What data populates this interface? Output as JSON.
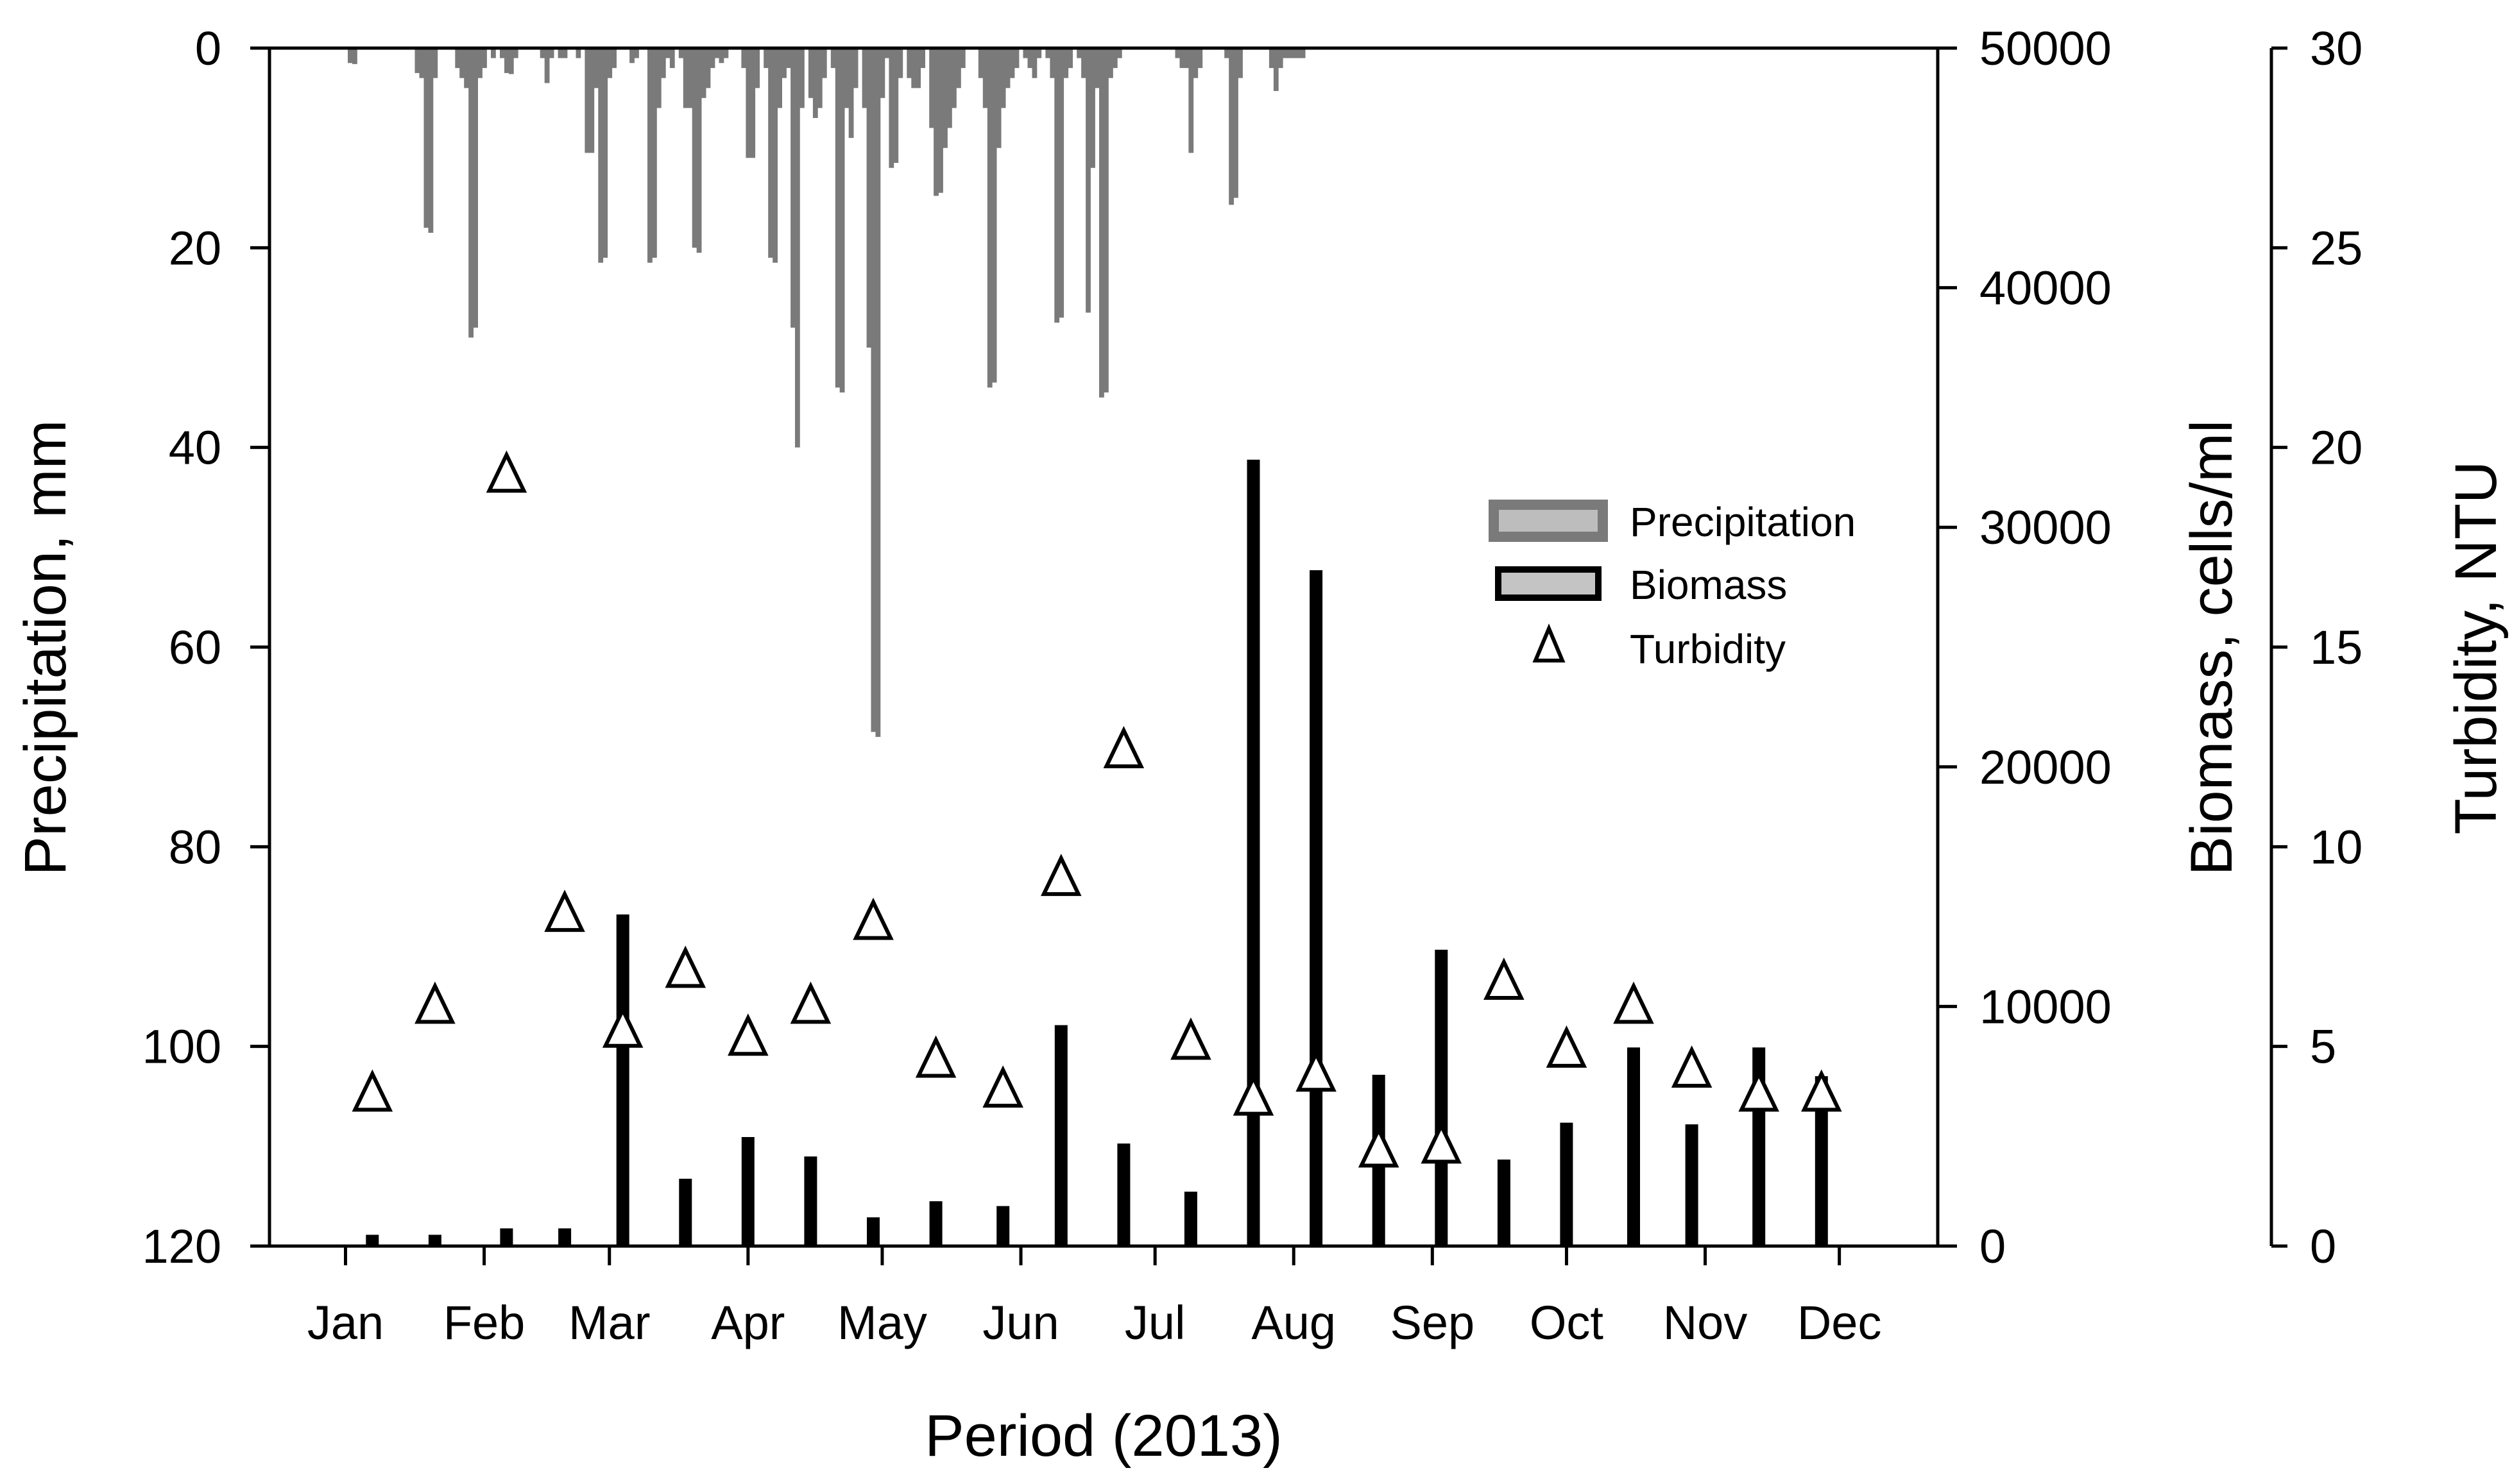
{
  "chart_data": {
    "type": "bar",
    "title": "",
    "xlabel": "Period (2013)",
    "x_unit": "day of year",
    "xlim": [
      -2,
      371
    ],
    "x_ticks": [
      {
        "day": 15,
        "label": "Jan"
      },
      {
        "day": 46,
        "label": "Feb"
      },
      {
        "day": 74,
        "label": "Mar"
      },
      {
        "day": 105,
        "label": "Apr"
      },
      {
        "day": 135,
        "label": "May"
      },
      {
        "day": 166,
        "label": "Jun"
      },
      {
        "day": 196,
        "label": "Jul"
      },
      {
        "day": 227,
        "label": "Aug"
      },
      {
        "day": 258,
        "label": "Sep"
      },
      {
        "day": 288,
        "label": "Oct"
      },
      {
        "day": 319,
        "label": "Nov"
      },
      {
        "day": 349,
        "label": "Dec"
      }
    ],
    "axes": {
      "precipitation": {
        "label": "Precipitation, mm",
        "ylim": [
          0,
          120
        ],
        "inverted": true,
        "ticks": [
          "0",
          "20",
          "40",
          "60",
          "80",
          "100",
          "120"
        ],
        "tick_values": [
          0,
          20,
          40,
          60,
          80,
          100,
          120
        ]
      },
      "biomass": {
        "label": "Biomass, cells/ml",
        "ylim": [
          0,
          50000
        ],
        "ticks": [
          "0",
          "10000",
          "20000",
          "30000",
          "40000",
          "50000"
        ],
        "tick_values": [
          0,
          10000,
          20000,
          30000,
          40000,
          50000
        ]
      },
      "turbidity": {
        "label": "Turbidity, NTU",
        "ylim": [
          0,
          30
        ],
        "ticks": [
          "0",
          "5",
          "10",
          "15",
          "20",
          "25",
          "30"
        ],
        "tick_values": [
          0,
          5,
          10,
          15,
          20,
          25,
          30
        ]
      }
    },
    "legend": {
      "placement": "center-right",
      "entries": [
        "Precipitation",
        "Biomass",
        "Turbidity"
      ]
    },
    "colors": {
      "precipitation": "#7a7a7a",
      "biomass": "#000000",
      "turbidity_fill": "#ffffff",
      "turbidity_stroke": "#000000"
    },
    "series": [
      {
        "name": "Precipitation",
        "type": "bar",
        "axis": "precipitation",
        "points": [
          [
            16,
            1.5
          ],
          [
            17,
            1.6
          ],
          [
            31,
            2.5
          ],
          [
            32,
            3
          ],
          [
            33,
            18
          ],
          [
            34,
            18.5
          ],
          [
            35,
            3
          ],
          [
            40,
            2
          ],
          [
            41,
            3
          ],
          [
            42,
            4
          ],
          [
            43,
            29
          ],
          [
            44,
            28
          ],
          [
            45,
            3
          ],
          [
            46,
            2
          ],
          [
            48,
            1
          ],
          [
            50,
            1
          ],
          [
            51,
            2.5
          ],
          [
            52,
            2.6
          ],
          [
            53,
            1
          ],
          [
            59,
            1
          ],
          [
            60,
            3.5
          ],
          [
            61,
            1
          ],
          [
            63,
            1
          ],
          [
            64,
            1
          ],
          [
            67,
            1
          ],
          [
            69,
            10.5
          ],
          [
            70,
            10.5
          ],
          [
            71,
            4
          ],
          [
            72,
            21.5
          ],
          [
            73,
            21
          ],
          [
            74,
            3
          ],
          [
            75,
            2
          ],
          [
            79,
            1.5
          ],
          [
            80,
            1
          ],
          [
            83,
            21.5
          ],
          [
            84,
            21
          ],
          [
            85,
            6
          ],
          [
            86,
            3
          ],
          [
            87,
            1
          ],
          [
            88,
            2
          ],
          [
            90,
            1
          ],
          [
            91,
            6
          ],
          [
            92,
            6
          ],
          [
            93,
            20
          ],
          [
            94,
            20.5
          ],
          [
            95,
            5
          ],
          [
            96,
            4
          ],
          [
            97,
            2
          ],
          [
            98,
            1
          ],
          [
            99,
            1.5
          ],
          [
            100,
            1
          ],
          [
            104,
            2
          ],
          [
            105,
            11
          ],
          [
            106,
            11
          ],
          [
            107,
            4
          ],
          [
            109,
            2
          ],
          [
            110,
            21
          ],
          [
            111,
            21.5
          ],
          [
            112,
            6
          ],
          [
            113,
            3
          ],
          [
            114,
            2
          ],
          [
            115,
            28
          ],
          [
            116,
            40
          ],
          [
            117,
            6
          ],
          [
            119,
            5
          ],
          [
            120,
            7
          ],
          [
            121,
            6
          ],
          [
            122,
            3
          ],
          [
            124,
            2
          ],
          [
            125,
            34
          ],
          [
            126,
            34.5
          ],
          [
            127,
            6
          ],
          [
            128,
            9
          ],
          [
            129,
            4
          ],
          [
            131,
            6
          ],
          [
            132,
            30
          ],
          [
            133,
            68.5
          ],
          [
            134,
            69
          ],
          [
            135,
            5
          ],
          [
            136,
            1
          ],
          [
            137,
            12
          ],
          [
            138,
            11.5
          ],
          [
            139,
            3
          ],
          [
            141,
            3
          ],
          [
            142,
            4
          ],
          [
            143,
            4
          ],
          [
            144,
            2
          ],
          [
            146,
            8
          ],
          [
            147,
            14.8
          ],
          [
            148,
            14.5
          ],
          [
            149,
            10
          ],
          [
            150,
            8
          ],
          [
            151,
            6
          ],
          [
            152,
            4
          ],
          [
            153,
            2
          ],
          [
            157,
            3
          ],
          [
            158,
            6
          ],
          [
            159,
            34
          ],
          [
            160,
            33.5
          ],
          [
            161,
            10
          ],
          [
            162,
            6
          ],
          [
            163,
            4
          ],
          [
            164,
            3
          ],
          [
            165,
            2
          ],
          [
            167,
            1
          ],
          [
            168,
            2
          ],
          [
            169,
            3
          ],
          [
            170,
            1
          ],
          [
            172,
            1
          ],
          [
            173,
            3
          ],
          [
            174,
            27.5
          ],
          [
            175,
            27
          ],
          [
            176,
            3
          ],
          [
            177,
            2
          ],
          [
            179,
            1
          ],
          [
            180,
            3
          ],
          [
            181,
            26.5
          ],
          [
            182,
            12
          ],
          [
            183,
            4
          ],
          [
            184,
            35
          ],
          [
            185,
            34.5
          ],
          [
            186,
            3
          ],
          [
            187,
            2
          ],
          [
            188,
            1
          ],
          [
            201,
            1
          ],
          [
            202,
            2
          ],
          [
            203,
            2
          ],
          [
            204,
            10.5
          ],
          [
            205,
            3
          ],
          [
            206,
            2
          ],
          [
            212,
            1
          ],
          [
            213,
            15.7
          ],
          [
            214,
            15
          ],
          [
            215,
            3
          ],
          [
            222,
            2
          ],
          [
            223,
            4.3
          ],
          [
            224,
            2
          ],
          [
            225,
            1
          ],
          [
            226,
            1
          ],
          [
            227,
            1
          ],
          [
            228,
            1
          ],
          [
            229,
            1
          ]
        ]
      },
      {
        "name": "Biomass",
        "type": "bar",
        "axis": "biomass",
        "points": [
          [
            21,
            470
          ],
          [
            35,
            470
          ],
          [
            51,
            740
          ],
          [
            64,
            740
          ],
          [
            77,
            13840
          ],
          [
            91,
            2810
          ],
          [
            105,
            4550
          ],
          [
            119,
            3740
          ],
          [
            133,
            1200
          ],
          [
            147,
            1870
          ],
          [
            162,
            1670
          ],
          [
            175,
            9220
          ],
          [
            189,
            4280
          ],
          [
            204,
            2270
          ],
          [
            218,
            32820
          ],
          [
            232,
            28210
          ],
          [
            246,
            7150
          ],
          [
            260,
            12370
          ],
          [
            274,
            3610
          ],
          [
            288,
            5150
          ],
          [
            303,
            8290
          ],
          [
            316,
            5080
          ],
          [
            331,
            8290
          ],
          [
            345,
            7090
          ]
        ]
      },
      {
        "name": "Turbidity",
        "type": "scatter",
        "axis": "turbidity",
        "marker": "open-triangle",
        "points": [
          [
            21,
            3.8
          ],
          [
            35,
            6.0
          ],
          [
            51,
            19.3
          ],
          [
            64,
            8.3
          ],
          [
            77,
            5.4
          ],
          [
            91,
            6.9
          ],
          [
            105,
            5.2
          ],
          [
            119,
            6.0
          ],
          [
            133,
            8.1
          ],
          [
            147,
            4.65
          ],
          [
            162,
            3.9
          ],
          [
            175,
            9.2
          ],
          [
            189,
            12.4
          ],
          [
            204,
            5.1
          ],
          [
            218,
            3.7
          ],
          [
            232,
            4.3
          ],
          [
            246,
            2.4
          ],
          [
            260,
            2.5
          ],
          [
            274,
            6.6
          ],
          [
            288,
            4.9
          ],
          [
            303,
            6.0
          ],
          [
            316,
            4.4
          ],
          [
            331,
            3.8
          ],
          [
            345,
            3.8
          ]
        ]
      }
    ]
  }
}
